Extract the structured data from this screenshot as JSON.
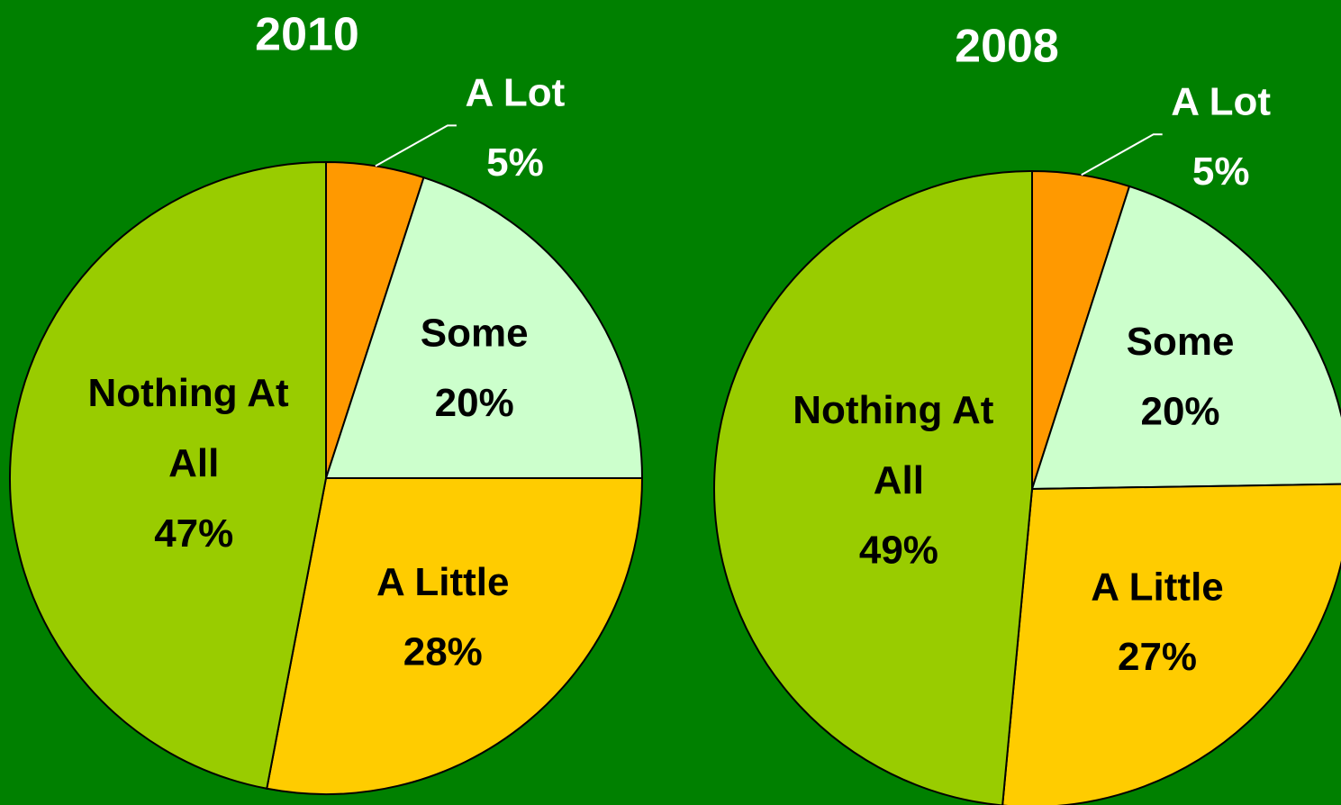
{
  "chart_data": [
    {
      "type": "pie",
      "title": "2010",
      "categories": [
        "A Lot",
        "Some",
        "A Little",
        "Nothing At All"
      ],
      "values": [
        5,
        20,
        28,
        47
      ],
      "value_labels": [
        "5%",
        "20%",
        "28%",
        "47%"
      ],
      "colors": [
        "#ff9900",
        "#ccffcc",
        "#ffcc00",
        "#99cc00"
      ]
    },
    {
      "type": "pie",
      "title": "2008",
      "categories": [
        "A Lot",
        "Some",
        "A Little",
        "Nothing At All"
      ],
      "values": [
        5,
        20,
        27,
        49
      ],
      "value_labels": [
        "5%",
        "20%",
        "27%",
        "49%"
      ],
      "colors": [
        "#ff9900",
        "#ccffcc",
        "#ffcc00",
        "#99cc00"
      ]
    }
  ]
}
